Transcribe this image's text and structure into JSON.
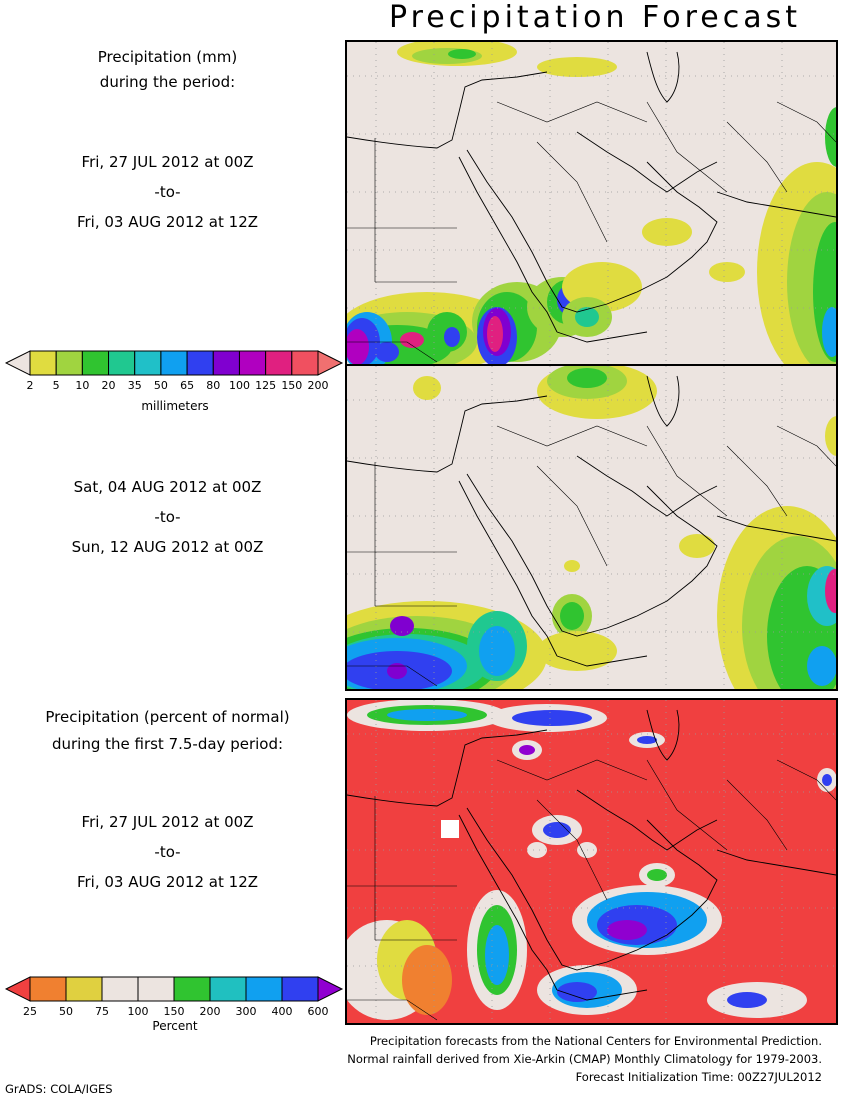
{
  "title": "Precipitation Forecast",
  "panel1": {
    "heading_line1": "Precipitation (mm)",
    "heading_line2": "during the period:",
    "start": "Fri, 27 JUL 2012 at 00Z",
    "sep": "-to-",
    "end": "Fri, 03 AUG 2012 at 12Z"
  },
  "panel2": {
    "start": "Sat, 04 AUG 2012 at 00Z",
    "sep": "-to-",
    "end": "Sun, 12 AUG 2012 at 00Z"
  },
  "panel3": {
    "heading_line1": "Precipitation (percent of normal)",
    "heading_line2": "during the first 7.5-day period:",
    "start": "Fri, 27 JUL 2012 at 00Z",
    "sep": "-to-",
    "end": "Fri, 03 AUG 2012 at 12Z"
  },
  "colorbar_mm": {
    "ticks": [
      "2",
      "5",
      "10",
      "20",
      "35",
      "50",
      "65",
      "80",
      "100",
      "125",
      "150",
      "200"
    ],
    "colors": [
      "#ece4e0",
      "#e0dc40",
      "#a0d440",
      "#30c430",
      "#20c890",
      "#20c0c8",
      "#10a0f0",
      "#3040f0",
      "#8000d0",
      "#b000c0",
      "#e02080",
      "#f05060",
      "#f07070"
    ],
    "unit": "millimeters"
  },
  "colorbar_pct": {
    "ticks": [
      "25",
      "50",
      "75",
      "100",
      "150",
      "200",
      "300",
      "400",
      "600"
    ],
    "colors": [
      "#f04040",
      "#f08030",
      "#e0d040",
      "#ece4e0",
      "#ece4e0",
      "#30c430",
      "#20c0c0",
      "#10a0f0",
      "#3040f0",
      "#9000d0"
    ],
    "unit": "Percent"
  },
  "footer": {
    "line1": "Precipitation forecasts from the National Centers for Environmental Prediction.",
    "line2": "Normal rainfall derived from Xie-Arkin (CMAP) Monthly Climatology for 1979-2003.",
    "line3": "Forecast Initialization Time: 00Z27JUL2012"
  },
  "credit": "GrADS: COLA/IGES"
}
